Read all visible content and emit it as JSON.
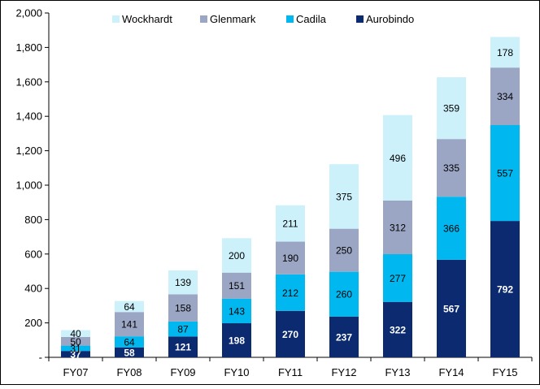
{
  "chart_data": {
    "type": "bar",
    "stacked": true,
    "categories": [
      "FY07",
      "FY08",
      "FY09",
      "FY10",
      "FY11",
      "FY12",
      "FY13",
      "FY14",
      "FY15"
    ],
    "series": [
      {
        "name": "Aurobindo",
        "color": "#0b2a6f",
        "label_color": "#ffffff",
        "values": [
          37,
          58,
          121,
          198,
          270,
          237,
          322,
          567,
          792
        ],
        "labels": [
          "37",
          "58",
          "121",
          "198",
          "270",
          "237",
          "322",
          "567",
          "792"
        ]
      },
      {
        "name": "Cadila",
        "color": "#00b8ef",
        "label_color": "#000000",
        "values": [
          31,
          64,
          87,
          143,
          212,
          260,
          277,
          366,
          557
        ],
        "labels": [
          "31",
          "64",
          "87",
          "143",
          "212",
          "260",
          "277",
          "366",
          "557"
        ]
      },
      {
        "name": "Glenmark",
        "color": "#9aa6c4",
        "label_color": "#000000",
        "values": [
          50,
          141,
          158,
          151,
          190,
          250,
          312,
          335,
          334
        ],
        "labels": [
          "50",
          "141",
          "158",
          "151",
          "190",
          "250",
          "312",
          "335",
          "334"
        ]
      },
      {
        "name": "Wockhardt",
        "color": "#cdf1fb",
        "label_color": "#000000",
        "values": [
          40,
          64,
          139,
          200,
          211,
          375,
          496,
          359,
          178
        ],
        "labels": [
          "40",
          "64",
          "139",
          "200",
          "211",
          "375",
          "496",
          "359",
          "178"
        ]
      }
    ],
    "legend_order": [
      "Wockhardt",
      "Glenmark",
      "Cadila",
      "Aurobindo"
    ],
    "legend_position": "top",
    "ylim": [
      0,
      2000
    ],
    "yticks": [
      0,
      200,
      400,
      600,
      800,
      1000,
      1200,
      1400,
      1600,
      1800,
      2000
    ],
    "ytick_labels": [
      "-",
      "200",
      "400",
      "600",
      "800",
      "1,000",
      "1,200",
      "1,400",
      "1,600",
      "1,800",
      "2,000"
    ],
    "grid": false,
    "title": "",
    "xlabel": "",
    "ylabel": ""
  }
}
